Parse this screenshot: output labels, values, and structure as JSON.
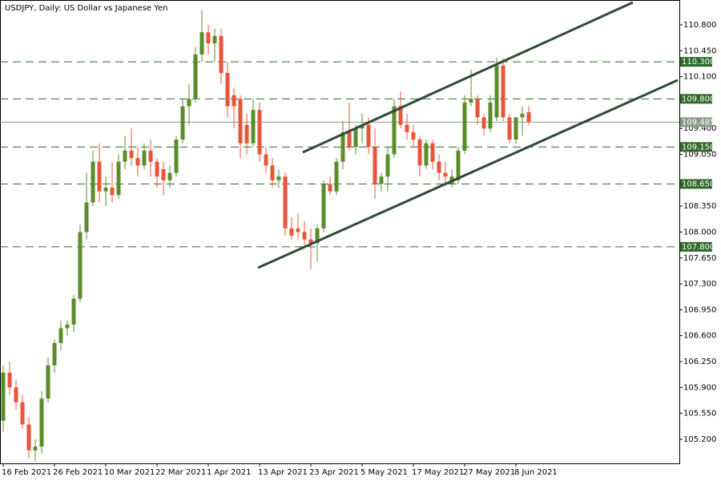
{
  "chart_data": {
    "type": "candlestick",
    "title": "USDJPY, Daily:  US Dollar vs Japanese Yen",
    "categories": [
      "16 Feb 2021",
      null,
      null,
      null,
      null,
      null,
      null,
      null,
      "26 Feb 2021",
      null,
      null,
      null,
      null,
      null,
      null,
      null,
      "10 Mar 2021",
      null,
      null,
      null,
      null,
      null,
      null,
      null,
      "22 Mar 2021",
      null,
      null,
      null,
      null,
      null,
      null,
      null,
      "1 Apr 2021",
      null,
      null,
      null,
      null,
      null,
      null,
      null,
      "13 Apr 2021",
      null,
      null,
      null,
      null,
      null,
      null,
      null,
      "23 Apr 2021",
      null,
      null,
      null,
      null,
      null,
      null,
      null,
      "5 May 2021",
      null,
      null,
      null,
      null,
      null,
      null,
      null,
      "17 May 2021",
      null,
      null,
      null,
      null,
      null,
      null,
      null,
      "27 May 2021",
      null,
      null,
      null,
      null,
      null,
      null,
      null,
      "8 Jun 2021",
      null,
      null
    ],
    "open": [
      105.45,
      106.1,
      105.9,
      105.7,
      105.4,
      105.05,
      105.1,
      105.75,
      106.2,
      106.5,
      106.7,
      106.75,
      107.1,
      108.0,
      108.4,
      108.95,
      108.55,
      108.6,
      108.5,
      108.95,
      109.1,
      109.0,
      108.9,
      109.1,
      108.95,
      108.85,
      108.7,
      108.8,
      109.25,
      109.7,
      109.8,
      110.4,
      110.7,
      110.55,
      110.65,
      110.15,
      109.85,
      109.8,
      109.45,
      109.2,
      109.65,
      109.05,
      108.9,
      108.7,
      108.75,
      108.05,
      108.05,
      108.0,
      107.9,
      107.85,
      108.05,
      108.65,
      108.55,
      108.95,
      109.35,
      109.15,
      109.4,
      109.45,
      109.15,
      108.65,
      108.75,
      109.05,
      109.7,
      109.45,
      109.35,
      109.25,
      108.9,
      109.2,
      108.95,
      108.8,
      108.65,
      108.7,
      109.1,
      109.75,
      109.8,
      109.55,
      109.4,
      109.55,
      110.25,
      109.55,
      109.25,
      109.55,
      109.62
    ],
    "high": [
      106.2,
      106.25,
      106.0,
      105.8,
      105.5,
      105.2,
      105.85,
      106.3,
      106.55,
      106.8,
      106.8,
      107.15,
      108.1,
      108.8,
      109.1,
      109.2,
      108.75,
      108.95,
      109.05,
      109.3,
      109.4,
      109.15,
      109.2,
      109.25,
      109.0,
      108.95,
      108.9,
      109.3,
      109.8,
      110.0,
      110.5,
      111.0,
      110.8,
      110.75,
      110.75,
      110.3,
      109.95,
      109.85,
      109.6,
      109.8,
      109.75,
      109.15,
      109.0,
      108.85,
      108.8,
      108.2,
      108.25,
      108.15,
      108.05,
      108.1,
      108.7,
      108.75,
      109.0,
      109.5,
      109.75,
      109.45,
      109.6,
      109.55,
      109.4,
      108.8,
      109.15,
      109.8,
      109.9,
      109.6,
      109.45,
      109.3,
      109.25,
      109.25,
      109.05,
      108.95,
      108.85,
      109.15,
      109.85,
      110.2,
      109.85,
      109.6,
      109.85,
      110.35,
      110.35,
      109.6,
      109.55,
      109.7,
      109.7
    ],
    "low": [
      105.3,
      105.8,
      105.6,
      105.35,
      104.95,
      104.9,
      105.0,
      105.7,
      106.1,
      106.4,
      106.6,
      106.65,
      107.05,
      107.9,
      108.35,
      108.4,
      108.35,
      108.4,
      108.45,
      108.85,
      108.9,
      108.75,
      108.85,
      108.75,
      108.6,
      108.5,
      108.6,
      108.75,
      109.2,
      109.45,
      109.75,
      110.3,
      110.4,
      110.3,
      110.0,
      109.55,
      109.4,
      109.0,
      109.05,
      109.15,
      108.95,
      108.8,
      108.6,
      108.6,
      107.95,
      107.9,
      107.9,
      107.8,
      107.5,
      107.6,
      108.0,
      108.5,
      108.5,
      108.85,
      109.1,
      109.05,
      109.2,
      109.05,
      108.45,
      108.55,
      108.55,
      109.0,
      109.4,
      109.25,
      109.15,
      108.75,
      108.85,
      108.85,
      108.7,
      108.65,
      108.6,
      108.65,
      109.05,
      109.7,
      109.45,
      109.3,
      109.35,
      109.5,
      109.5,
      109.2,
      109.2,
      109.3,
      109.45
    ],
    "close": [
      106.1,
      105.9,
      105.7,
      105.4,
      105.05,
      105.1,
      105.75,
      106.2,
      106.5,
      106.7,
      106.75,
      107.1,
      108.0,
      108.4,
      108.95,
      108.55,
      108.6,
      108.5,
      108.95,
      109.1,
      109.0,
      108.9,
      109.1,
      108.95,
      108.75,
      108.7,
      108.8,
      109.25,
      109.7,
      109.8,
      110.4,
      110.7,
      110.55,
      110.65,
      110.15,
      109.7,
      109.7,
      109.2,
      109.2,
      109.65,
      109.05,
      108.9,
      108.7,
      108.75,
      108.05,
      107.95,
      108.0,
      107.9,
      107.85,
      108.05,
      108.65,
      108.55,
      108.95,
      109.35,
      109.15,
      109.4,
      109.45,
      109.15,
      108.65,
      108.75,
      109.05,
      109.7,
      109.45,
      109.35,
      109.25,
      108.9,
      109.2,
      108.95,
      108.8,
      108.75,
      108.75,
      109.1,
      109.75,
      109.8,
      109.55,
      109.4,
      109.75,
      110.25,
      109.55,
      109.25,
      109.55,
      109.6,
      109.485
    ],
    "up_color": "#5b8c2a",
    "down_color": "#e8553a",
    "ylim": [
      104.874,
      111.136
    ],
    "yticks": [
      {
        "value": 105.2,
        "label": "105.200"
      },
      {
        "value": 105.55,
        "label": "105.550"
      },
      {
        "value": 105.9,
        "label": "105.900"
      },
      {
        "value": 106.25,
        "label": "106.250"
      },
      {
        "value": 106.6,
        "label": "106.600"
      },
      {
        "value": 106.95,
        "label": "106.950"
      },
      {
        "value": 107.3,
        "label": "107.300"
      },
      {
        "value": 107.65,
        "label": "107.650"
      },
      {
        "value": 108.0,
        "label": "108.000"
      },
      {
        "value": 108.35,
        "label": "108.350"
      },
      {
        "value": 109.05,
        "label": "109.050"
      },
      {
        "value": 109.4,
        "label": "109.400"
      },
      {
        "value": 110.1,
        "label": "110.100"
      },
      {
        "value": 110.45,
        "label": "110.450"
      },
      {
        "value": 110.8,
        "label": "110.800"
      }
    ],
    "levels": [
      {
        "value": 110.3,
        "label": "110.300"
      },
      {
        "value": 109.8,
        "label": "109.800"
      },
      {
        "value": 109.15,
        "label": "109.150"
      },
      {
        "value": 108.65,
        "label": "108.650"
      },
      {
        "value": 107.8,
        "label": "107.800"
      }
    ],
    "level_color": "#2f6b2a",
    "current_price": {
      "value": 109.485,
      "label": "109.485"
    },
    "current_color": "#8a9a8a"
  }
}
